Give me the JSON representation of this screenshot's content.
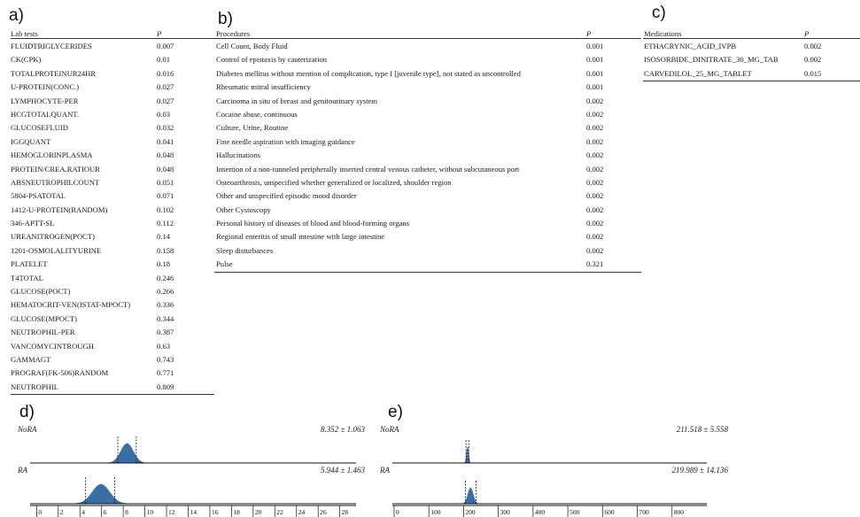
{
  "panels": {
    "a": "a)",
    "b": "b)",
    "c": "c)",
    "d": "d)",
    "e": "e)"
  },
  "lab_tests": {
    "col_name": "Lab tests",
    "col_p": "P",
    "rows": [
      {
        "name": "FLUIDTRIGLYCERIDES",
        "p": "0.007"
      },
      {
        "name": "CK(CPK)",
        "p": "0.01"
      },
      {
        "name": "TOTALPROTEINUR24HR",
        "p": "0.016"
      },
      {
        "name": "U-PROTEIN(CONC.)",
        "p": "0.027"
      },
      {
        "name": "LYMPHOCYTE-PER",
        "p": "0.027"
      },
      {
        "name": "HCGTOTALQUANT.",
        "p": "0.03"
      },
      {
        "name": "GLUCOSEFLUID",
        "p": "0.032"
      },
      {
        "name": "IGGQUANT",
        "p": "0.041"
      },
      {
        "name": "HEMOGLOBINPLASMA",
        "p": "0.048"
      },
      {
        "name": "PROTEIN/CREA.RATIOUR",
        "p": "0.048"
      },
      {
        "name": "ABSNEUTROPHILCOUNT",
        "p": "0.051"
      },
      {
        "name": "5804-PSATOTAL",
        "p": "0.071"
      },
      {
        "name": "1412-U-PROTEIN(RANDOM)",
        "p": "0.102"
      },
      {
        "name": "346-APTT-SL",
        "p": "0.112"
      },
      {
        "name": "UREANITROGEN(POCT)",
        "p": "0.14"
      },
      {
        "name": "1201-OSMOLALITYURINE",
        "p": "0.158"
      },
      {
        "name": "PLATELET",
        "p": "0.18"
      },
      {
        "name": "T4TOTAL",
        "p": "0.246"
      },
      {
        "name": "GLUCOSE(POCT)",
        "p": "0.266"
      },
      {
        "name": "HEMATOCRIT-VEN(ISTAT-MPOCT)",
        "p": "0.336"
      },
      {
        "name": "GLUCOSE(MPOCT)",
        "p": "0.344"
      },
      {
        "name": "NEUTROPHIL-PER",
        "p": "0.387"
      },
      {
        "name": "VANCOMYCINTROUGH",
        "p": "0.63"
      },
      {
        "name": "GAMMAGT",
        "p": "0.743"
      },
      {
        "name": "PROGRAF(FK-506)RANDOM",
        "p": "0.771"
      },
      {
        "name": "NEUTROPHIL",
        "p": "0.809"
      }
    ]
  },
  "procedures": {
    "col_name": "Procedures",
    "col_p": "P",
    "rows": [
      {
        "name": "Cell Count, Body Fluid",
        "p": "0.001"
      },
      {
        "name": "Control of epistaxis by cauterization",
        "p": "0.001"
      },
      {
        "name": "Diabetes mellitus without mention of complication, type I [juvenile type], not stated as uncontrolled",
        "p": "0.001"
      },
      {
        "name": "Rheumatic mitral insufficiency",
        "p": "0.001"
      },
      {
        "name": "Carcinoma in situ of breast and genitourinary system",
        "p": "0.002"
      },
      {
        "name": "Cocaine abuse, continuous",
        "p": "0.002"
      },
      {
        "name": "Culture, Urine, Routine",
        "p": "0.002"
      },
      {
        "name": "Fine needle aspiration with imaging guidance",
        "p": "0.002"
      },
      {
        "name": "Hallucinations",
        "p": "0.002"
      },
      {
        "name": "Insertion of a non-tunneled peripherally inserted central venous catheter, without subcutaneous port",
        "p": "0.002"
      },
      {
        "name": "Osteoarthrosis, unspecified whether generalized or localized, shoulder region",
        "p": "0.002"
      },
      {
        "name": "Other and unspecified episodic mood disorder",
        "p": "0.002"
      },
      {
        "name": "Other Cystoscopy",
        "p": "0.002"
      },
      {
        "name": "Personal history of diseases of blood and blood-forming organs",
        "p": "0.002"
      },
      {
        "name": "Regional enteritis of small intestine with large intestine",
        "p": "0.002"
      },
      {
        "name": "Sleep disturbances",
        "p": "0.002"
      },
      {
        "name": "Pulse",
        "p": "0.321"
      }
    ]
  },
  "medications": {
    "col_name": "Medications",
    "col_p": "P",
    "rows": [
      {
        "name": "ETHACRYNIC_ACID_IVPB",
        "p": "0.002"
      },
      {
        "name": "ISOSORBIDE_DINITRATE_30_MG_TAB",
        "p": "0.002"
      },
      {
        "name": "CARVEDILOL_25_MG_TABLET",
        "p": "0.015"
      }
    ]
  },
  "chart_data": [
    {
      "type": "area",
      "panel": "d)",
      "series": [
        {
          "name": "NoRA",
          "stat": "8.352 ± 1.063",
          "mean": 8.352,
          "sd": 1.063,
          "ci_lines": [
            7.5,
            9.2
          ]
        },
        {
          "name": "RA",
          "stat": "5.944 ± 1.463",
          "mean": 5.944,
          "sd": 1.463,
          "ci_lines": [
            4.5,
            7.2
          ]
        }
      ],
      "x_ticks": [
        0,
        2,
        4,
        6,
        8,
        10,
        12,
        14,
        16,
        18,
        20,
        22,
        24,
        26,
        28
      ],
      "xlim": [
        -0.6,
        29.5
      ],
      "color": "#3a6ea5"
    },
    {
      "type": "area",
      "panel": "e)",
      "series": [
        {
          "name": "NoRA",
          "stat": "211.518 ± 5.558",
          "mean": 211.518,
          "sd": 5.558,
          "ci_lines": [
            207.0,
            215.0
          ]
        },
        {
          "name": "RA",
          "stat": "219.989 ± 14.136",
          "mean": 219.989,
          "sd": 14.136,
          "ci_lines": [
            205.0,
            236.0
          ]
        }
      ],
      "x_ticks": [
        0,
        100,
        200,
        300,
        400,
        500,
        600,
        700,
        800
      ],
      "xlim": [
        -5,
        900
      ],
      "color": "#3a6ea5"
    }
  ]
}
